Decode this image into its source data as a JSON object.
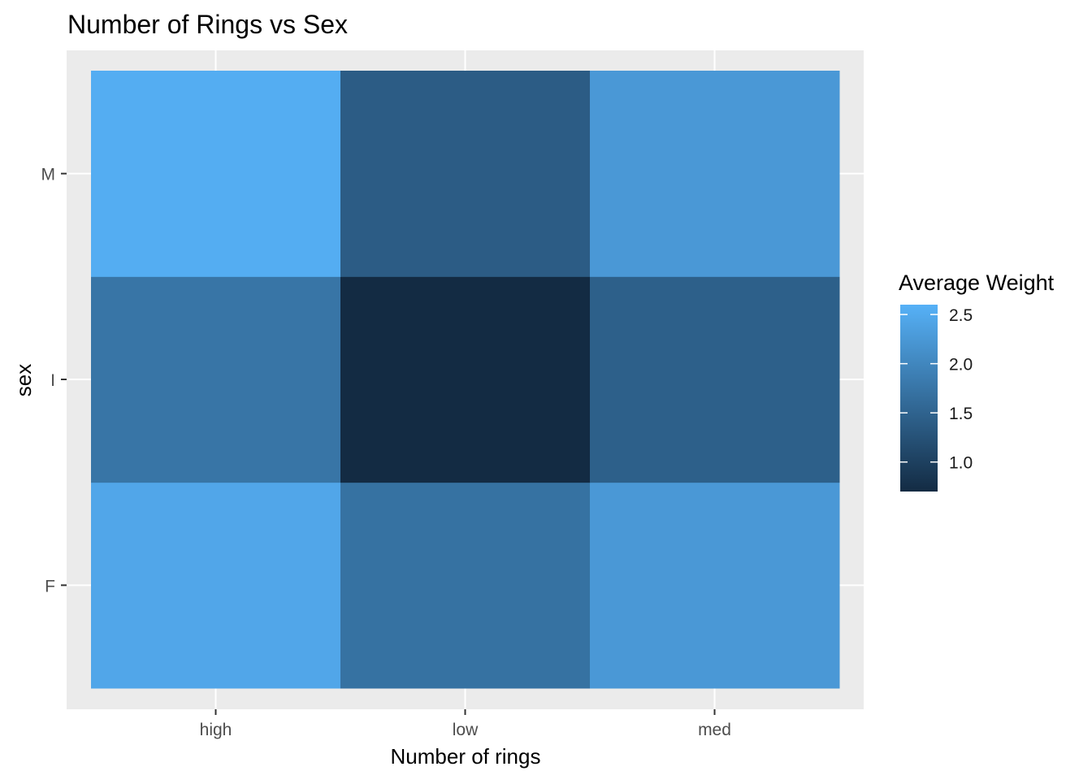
{
  "chart_data": {
    "type": "heatmap",
    "title": "Number of Rings vs Sex",
    "xlabel": "Number of rings",
    "ylabel": "sex",
    "x_categories": [
      "high",
      "low",
      "med"
    ],
    "y_categories": [
      "F",
      "I",
      "M"
    ],
    "values": [
      [
        2.45,
        1.7,
        2.25
      ],
      [
        1.75,
        0.7,
        1.45
      ],
      [
        2.55,
        1.4,
        2.25
      ]
    ],
    "legend": {
      "title": "Average Weight",
      "position": "right",
      "ticks": [
        1.0,
        1.5,
        2.0,
        2.5
      ],
      "tick_labels": [
        "1.0",
        "1.5",
        "2.0",
        "2.5"
      ],
      "range": [
        0.7,
        2.6
      ],
      "low_color": "#132b43",
      "high_color": "#56b1f7"
    },
    "panel_background": "#ebebeb",
    "grid": true
  }
}
